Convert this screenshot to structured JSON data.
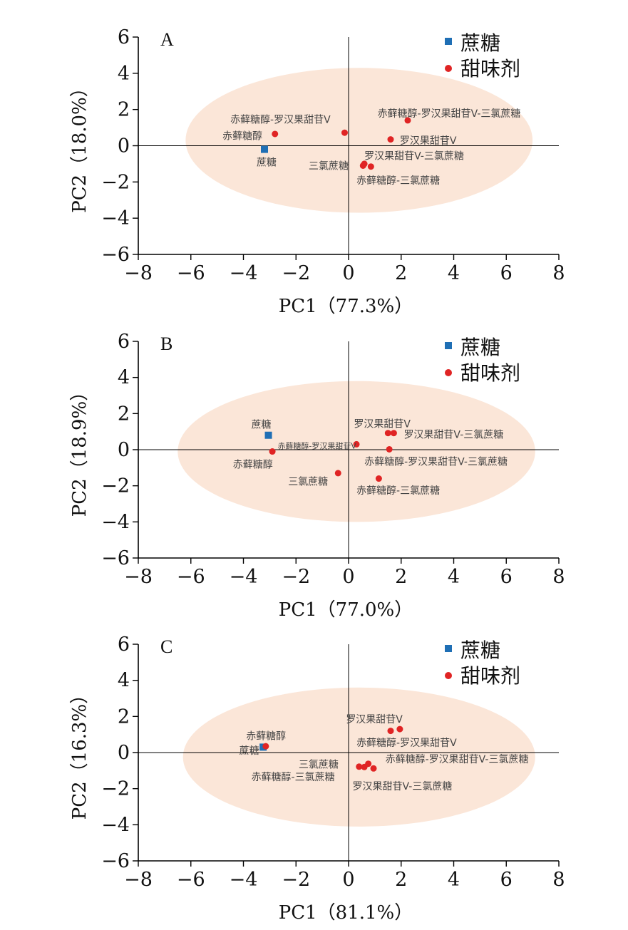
{
  "colors": {
    "sucrose": "#1f6fb5",
    "sweetener": "#e02424",
    "ellipse": "#fbe6d8"
  },
  "chart_data": [
    {
      "type": "scatter",
      "panel": "A",
      "xlabel": "PC1（77.3%）",
      "ylabel": "PC2（18.0%）",
      "xlim": [
        -8,
        8
      ],
      "ylim": [
        -6,
        6
      ],
      "xticks": [
        "−8",
        "−6",
        "−4",
        "−2",
        "0",
        "2",
        "4",
        "6",
        "8"
      ],
      "yticks": [
        "6",
        "4",
        "2",
        "0",
        "−2",
        "−4",
        "−6"
      ],
      "legend": [
        {
          "name": "蔗糖",
          "marker": "square"
        },
        {
          "name": "甜味剂",
          "marker": "circle"
        }
      ],
      "ellipse": {
        "cx": 0.4,
        "cy": 0.3,
        "rx": 6.6,
        "ry": 4.0
      },
      "series": [
        {
          "name": "蔗糖",
          "marker": "square",
          "points": [
            {
              "label": "蔗糖",
              "x": -3.2,
              "y": -0.2,
              "lx": -3.5,
              "ly": -0.9,
              "anchor": "start"
            }
          ]
        },
        {
          "name": "甜味剂",
          "marker": "circle",
          "points": [
            {
              "label": "赤藓糖醇",
              "x": -2.8,
              "y": 0.65,
              "lx": -4.8,
              "ly": 0.55,
              "anchor": "start"
            },
            {
              "label": "赤藓糖醇-罗汉果甜苷V",
              "x": -0.15,
              "y": 0.72,
              "lx": -4.5,
              "ly": 1.45,
              "anchor": "start"
            },
            {
              "label": "赤藓糖醇-罗汉果甜苷V-三氯蔗糖",
              "x": 2.25,
              "y": 1.4,
              "lx": 1.1,
              "ly": 1.8,
              "anchor": "start"
            },
            {
              "label": "罗汉果甜苷V",
              "x": 1.6,
              "y": 0.35,
              "lx": 1.95,
              "ly": 0.3,
              "anchor": "start"
            },
            {
              "label": "罗汉果甜苷V-三氯蔗糖",
              "x": 0.6,
              "y": -1.0,
              "lx": 0.6,
              "ly": -0.55,
              "anchor": "start"
            },
            {
              "label": "三氯蔗糖",
              "x": 0.55,
              "y": -1.1,
              "lx": 0.0,
              "ly": -1.1,
              "anchor": "end"
            },
            {
              "label": "赤藓糖醇-三氯蔗糖",
              "x": 0.85,
              "y": -1.15,
              "lx": 0.3,
              "ly": -1.9,
              "anchor": "start"
            }
          ]
        }
      ]
    },
    {
      "type": "scatter",
      "panel": "B",
      "xlabel": "PC1（77.0%）",
      "ylabel": "PC2（18.9%）",
      "xlim": [
        -8,
        8
      ],
      "ylim": [
        -6,
        6
      ],
      "xticks": [
        "−8",
        "−6",
        "−4",
        "−2",
        "0",
        "2",
        "4",
        "6",
        "8"
      ],
      "yticks": [
        "6",
        "4",
        "2",
        "0",
        "−2",
        "−4",
        "−6"
      ],
      "legend": [
        {
          "name": "蔗糖",
          "marker": "square"
        },
        {
          "name": "甜味剂",
          "marker": "circle"
        }
      ],
      "ellipse": {
        "cx": 0.3,
        "cy": -0.1,
        "rx": 6.8,
        "ry": 3.9
      },
      "series": [
        {
          "name": "蔗糖",
          "marker": "square",
          "points": [
            {
              "label": "蔗糖",
              "x": -3.05,
              "y": 0.8,
              "lx": -3.7,
              "ly": 1.4,
              "anchor": "start"
            }
          ]
        },
        {
          "name": "甜味剂",
          "marker": "circle",
          "points": [
            {
              "label": "赤藓糖醇",
              "x": -2.9,
              "y": -0.1,
              "lx": -4.4,
              "ly": -0.8,
              "anchor": "start"
            },
            {
              "label": "赤藓糖醇-罗汉果甜苷V",
              "x": 0.3,
              "y": 0.3,
              "lx": -2.7,
              "ly": 0.25,
              "anchor": "start",
              "small": true
            },
            {
              "label": "罗汉果甜苷V",
              "x": 1.5,
              "y": 0.92,
              "lx": 0.2,
              "ly": 1.45,
              "anchor": "start"
            },
            {
              "label": "罗汉果甜苷V-三氯蔗糖",
              "x": 1.72,
              "y": 0.92,
              "lx": 2.1,
              "ly": 0.85,
              "anchor": "start"
            },
            {
              "label": "赤藓糖醇-罗汉果甜苷V-三氯蔗糖",
              "x": 1.55,
              "y": 0.02,
              "lx": 0.6,
              "ly": -0.65,
              "anchor": "start"
            },
            {
              "label": "三氯蔗糖",
              "x": -0.4,
              "y": -1.3,
              "lx": -2.3,
              "ly": -1.75,
              "anchor": "start"
            },
            {
              "label": "赤藓糖醇-三氯蔗糖",
              "x": 1.15,
              "y": -1.6,
              "lx": 0.3,
              "ly": -2.25,
              "anchor": "start"
            }
          ]
        }
      ]
    },
    {
      "type": "scatter",
      "panel": "C",
      "xlabel": "PC1（81.1%）",
      "ylabel": "PC2（16.3%）",
      "xlim": [
        -8,
        8
      ],
      "ylim": [
        -6,
        6
      ],
      "xticks": [
        "−8",
        "−6",
        "−4",
        "−2",
        "0",
        "2",
        "4",
        "6",
        "8"
      ],
      "yticks": [
        "6",
        "4",
        "2",
        "0",
        "−2",
        "−4",
        "−6"
      ],
      "legend": [
        {
          "name": "蔗糖",
          "marker": "square"
        },
        {
          "name": "甜味剂",
          "marker": "circle"
        }
      ],
      "ellipse": {
        "cx": 0.4,
        "cy": -0.25,
        "rx": 6.7,
        "ry": 3.85
      },
      "series": [
        {
          "name": "蔗糖",
          "marker": "square",
          "points": [
            {
              "label": "蔗糖",
              "x": -3.25,
              "y": 0.3,
              "lx": -3.4,
              "ly": 0.12,
              "anchor": "end"
            }
          ]
        },
        {
          "name": "甜味剂",
          "marker": "circle",
          "points": [
            {
              "label": "赤藓糖醇",
              "x": -3.15,
              "y": 0.35,
              "lx": -3.9,
              "ly": 0.92,
              "anchor": "start"
            },
            {
              "label": "罗汉果甜苷V",
              "x": 1.6,
              "y": 1.2,
              "lx": -0.1,
              "ly": 1.85,
              "anchor": "start"
            },
            {
              "label": "赤藓糖醇-罗汉果甜苷V",
              "x": 1.95,
              "y": 1.3,
              "lx": 0.3,
              "ly": 0.55,
              "anchor": "start"
            },
            {
              "label": "赤藓糖醇-罗汉果甜苷V-三氯蔗糖",
              "x": 0.75,
              "y": -0.62,
              "lx": 1.4,
              "ly": -0.35,
              "anchor": "start"
            },
            {
              "label": "三氯蔗糖",
              "x": 0.4,
              "y": -0.78,
              "lx": -1.9,
              "ly": -0.65,
              "anchor": "start"
            },
            {
              "label": "赤藓糖醇-三氯蔗糖",
              "x": 0.6,
              "y": -0.8,
              "lx": -3.7,
              "ly": -1.35,
              "anchor": "start"
            },
            {
              "label": "罗汉果甜苷V-三氯蔗糖",
              "x": 0.95,
              "y": -0.88,
              "lx": 0.15,
              "ly": -1.85,
              "anchor": "start"
            }
          ]
        }
      ]
    }
  ]
}
